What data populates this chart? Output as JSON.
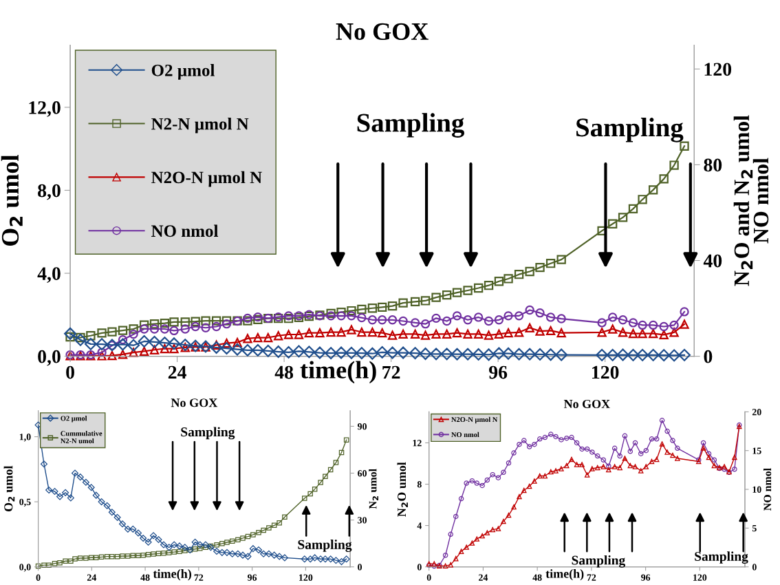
{
  "chart_data": [
    {
      "type": "line",
      "title": "No GOX",
      "xlabel": "time(h)",
      "ylabel": "O$_{2}$ umol",
      "y2label": "N$_{2}$O and N$_{2}$ umol\nNO nmol",
      "legend": "top left",
      "x": [
        0,
        2.3,
        4.6,
        7.1,
        9.4,
        11.8,
        14.2,
        16.6,
        18.9,
        21.2,
        23.3,
        25.8,
        28.1,
        30.4,
        32.8,
        35.1,
        37.5,
        39.8,
        42.1,
        44.4,
        46.7,
        49.0,
        51.3,
        53.6,
        56.0,
        58.5,
        60.8,
        63.1,
        65.4,
        67.8,
        70.0,
        72.3,
        74.7,
        77.4,
        79.7,
        82.1,
        84.5,
        86.8,
        89.2,
        91.6,
        93.9,
        96.2,
        98.3,
        100.7,
        103.1,
        105.4,
        107.8,
        110.2,
        119.3,
        121.7,
        124,
        126.3,
        128.4,
        130.8,
        133.2,
        135.5,
        137.8
      ],
      "xlim": [
        0,
        140
      ],
      "xticks": [
        0,
        24,
        48,
        72,
        96,
        120
      ],
      "ylim": [
        0,
        15
      ],
      "yticks": [
        {
          "value": 0,
          "label": "0,0"
        },
        {
          "value": 4,
          "label": "4,0"
        },
        {
          "value": 8,
          "label": "8,0"
        },
        {
          "value": 12,
          "label": "12,0"
        }
      ],
      "y2lim": [
        0,
        130
      ],
      "y2ticks": [
        0,
        40,
        80,
        120
      ],
      "series": [
        {
          "name": "O2 µmol",
          "color": "#1f4e8c",
          "marker": "diamond",
          "values": [
            1.09,
            0.79,
            0.59,
            0.58,
            0.54,
            0.57,
            0.53,
            0.72,
            0.69,
            0.65,
            0.61,
            0.55,
            0.5,
            0.47,
            0.42,
            0.38,
            0.33,
            0.29,
            0.29,
            0.26,
            0.22,
            0.19,
            0.24,
            0.21,
            0.17,
            0.15,
            0.17,
            0.16,
            0.15,
            0.13,
            0.19,
            0.17,
            0.17,
            0.15,
            0.12,
            0.11,
            0.11,
            0.1,
            0.1,
            0.09,
            0.08,
            0.14,
            0.13,
            0.1,
            0.1,
            0.09,
            0.08,
            0.07,
            0.06,
            0.06,
            0.07,
            0.06,
            0.06,
            0.06,
            0.05,
            0.04,
            0.06
          ]
        },
        {
          "name": "N2-N µmol N",
          "color": "#4f6228",
          "marker": "square",
          "axis": "y2",
          "values": [
            8.1,
            7.8,
            8.6,
            9.7,
            10.2,
            10.8,
            11.4,
            13.1,
            13.5,
            13.8,
            14.3,
            14.3,
            14.5,
            14.8,
            14.8,
            14.8,
            14.8,
            14.8,
            15.3,
            15.8,
            15.8,
            15.8,
            16.2,
            16.7,
            17.2,
            17.9,
            18.4,
            19.0,
            19.6,
            20.1,
            20.5,
            21.0,
            22.3,
            22.8,
            23.2,
            24.6,
            25.6,
            26.6,
            27.5,
            28.5,
            29.6,
            31.3,
            32.4,
            34.2,
            35.4,
            37.1,
            38.8,
            40.4,
            52.4,
            55.3,
            58.0,
            61.6,
            65.5,
            69.5,
            74.1,
            79.8,
            87.8
          ]
        },
        {
          "name": "N2O-N µmol N",
          "color": "#c00000",
          "marker": "triangle",
          "axis": "y2",
          "values": [
            0.2,
            0.2,
            0.2,
            0.2,
            0.3,
            0.8,
            1.6,
            2.1,
            2.7,
            3.2,
            3.2,
            3.7,
            3.9,
            3.9,
            4.7,
            5.5,
            5.8,
            7.4,
            7.8,
            7.8,
            8.6,
            9.1,
            9.1,
            9.8,
            9.8,
            10.1,
            10.1,
            11.1,
            10.1,
            10.1,
            9.8,
            8.8,
            9.3,
            9.3,
            8.8,
            9.3,
            9.3,
            9.8,
            9.3,
            9.3,
            8.8,
            9.3,
            9.8,
            10.0,
            11.9,
            10.5,
            10.7,
            9.8,
            10.0,
            11.4,
            10.0,
            9.5,
            9.5,
            9.5,
            9.0,
            10.0,
            13.4
          ]
        },
        {
          "name": "NO nmol",
          "color": "#7030a0",
          "marker": "circle",
          "axis": "y2",
          "values": [
            0.6,
            0.6,
            0.6,
            1.6,
            4.5,
            6.9,
            9.2,
            11.4,
            11.4,
            11.4,
            10.7,
            11.4,
            12.4,
            11.9,
            12.4,
            13.5,
            14.7,
            15.9,
            16.4,
            15.9,
            16.4,
            16.9,
            16.9,
            17.4,
            16.9,
            16.9,
            16.9,
            16.9,
            16.1,
            15.2,
            15.2,
            15.2,
            14.7,
            14.0,
            13.5,
            15.9,
            14.7,
            16.9,
            15.2,
            16.3,
            14.7,
            15.2,
            16.9,
            16.9,
            19.3,
            18.1,
            16.3,
            15.7,
            14.0,
            16.3,
            15.2,
            14.0,
            13.0,
            13.0,
            12.4,
            13.0,
            18.6
          ]
        }
      ],
      "annotations": [
        "Sampling",
        "Sampling"
      ]
    },
    {
      "type": "line",
      "title": "No GOX",
      "xlabel": "time(h)",
      "ylabel": "O$_{2}$ umol",
      "y2label": "N$_{2}$ umol",
      "legend": "top left",
      "x": [
        0,
        2.6,
        4.8,
        7.4,
        9.7,
        12.2,
        14.6,
        16.5,
        18.9,
        21.4,
        23.8,
        26,
        28.4,
        30.9,
        33.1,
        35.5,
        37.8,
        40.2,
        42.5,
        44.9,
        47.1,
        49.4,
        51.7,
        54,
        56.3,
        58.7,
        61,
        63.4,
        65.8,
        68.1,
        70.4,
        72.6,
        75.1,
        77.4,
        80.1,
        82.5,
        84.7,
        87.1,
        89.6,
        91.8,
        94.1,
        96.4,
        98.9,
        101.1,
        103.5,
        105.9,
        108.2,
        110.6,
        119.5,
        122.1,
        124.1,
        126.7,
        128.8,
        131.2,
        133.6,
        136.1,
        138.3
      ],
      "xlim": [
        0,
        140
      ],
      "xticks": [
        0,
        24,
        48,
        72,
        96,
        120
      ],
      "ylim": [
        0,
        1.2
      ],
      "yticks": [
        {
          "value": 0,
          "label": "0,0"
        },
        {
          "value": 0.5,
          "label": "0,5"
        },
        {
          "value": 1.0,
          "label": "1,0"
        }
      ],
      "y2lim": [
        0,
        100
      ],
      "y2ticks": [
        0,
        30,
        60,
        90
      ],
      "series": [
        {
          "name": "O2 µmol",
          "color": "#1f4e8c",
          "marker": "diamond",
          "values": [
            1.09,
            0.79,
            0.59,
            0.58,
            0.54,
            0.57,
            0.53,
            0.72,
            0.69,
            0.65,
            0.61,
            0.55,
            0.5,
            0.47,
            0.42,
            0.38,
            0.33,
            0.29,
            0.29,
            0.26,
            0.22,
            0.19,
            0.24,
            0.21,
            0.17,
            0.15,
            0.17,
            0.16,
            0.15,
            0.13,
            0.19,
            0.17,
            0.17,
            0.15,
            0.12,
            0.11,
            0.11,
            0.1,
            0.1,
            0.09,
            0.08,
            0.14,
            0.13,
            0.1,
            0.1,
            0.09,
            0.08,
            0.07,
            0.06,
            0.06,
            0.07,
            0.06,
            0.06,
            0.06,
            0.05,
            0.04,
            0.06
          ]
        },
        {
          "name": "Cummulative\nN2-N umol",
          "color": "#4f6228",
          "marker": "square",
          "axis": "y2",
          "values": [
            0.5,
            1.1,
            1.1,
            2.2,
            2.6,
            3.7,
            3.7,
            5.1,
            5.6,
            5.6,
            5.9,
            5.9,
            6.3,
            6.6,
            6.6,
            6.6,
            6.9,
            6.9,
            7.2,
            7.2,
            7.5,
            7.9,
            8.2,
            8.5,
            8.8,
            9.1,
            9.5,
            9.9,
            10.4,
            10.9,
            11.4,
            11.9,
            12.5,
            13.3,
            14.1,
            14.9,
            15.7,
            16.5,
            17.4,
            18.4,
            19.4,
            20.6,
            22,
            23.4,
            25,
            26.6,
            28.2,
            31.9,
            43.9,
            46.8,
            49.8,
            54,
            57.9,
            62.2,
            66.8,
            73.2,
            81.3
          ]
        }
      ],
      "annotations": [
        "Sampling",
        "Sampling"
      ]
    },
    {
      "type": "line",
      "title": "No GOX",
      "xlabel": "time(h)",
      "ylabel": "N$_{2}$O umol",
      "y2label": "NO nmol",
      "legend": "top left",
      "x": [
        0,
        2.3,
        4.6,
        7.3,
        9.6,
        11.9,
        14.3,
        16.6,
        19.1,
        21.2,
        23.6,
        25.8,
        28.2,
        30.7,
        33,
        35.3,
        37.6,
        40,
        42.1,
        44.5,
        46.7,
        49.1,
        51.4,
        54,
        56.2,
        58.6,
        61,
        63.2,
        65.5,
        67.8,
        70.1,
        72.3,
        74.7,
        77.3,
        79.6,
        82.3,
        84.6,
        86.8,
        89.2,
        91.4,
        93.9,
        96.2,
        98.7,
        100.9,
        103.3,
        105.6,
        108,
        110.1,
        119.5,
        121.6,
        124,
        126.4,
        128.7,
        130.9,
        133,
        135.4,
        137.5
      ],
      "xlim": [
        0,
        140
      ],
      "xticks": [
        0,
        24,
        48,
        72,
        96,
        120
      ],
      "ylim": [
        0,
        15
      ],
      "yticks": [
        0,
        4,
        8,
        12
      ],
      "y2lim": [
        0,
        20
      ],
      "y2ticks": [
        0,
        5,
        10,
        15,
        20
      ],
      "series": [
        {
          "name": "N2O-N µmol N",
          "color": "#c00000",
          "marker": "triangle",
          "values": [
            0.3,
            0.3,
            0.1,
            0.1,
            0.2,
            0.8,
            1.5,
            1.9,
            2.3,
            2.7,
            3.0,
            3.3,
            3.6,
            3.7,
            4.4,
            5.0,
            5.8,
            6.8,
            7.4,
            7.8,
            8.3,
            8.8,
            8.8,
            9.2,
            9.3,
            9.5,
            9.8,
            10.4,
            9.9,
            9.9,
            8.9,
            9.5,
            9.6,
            9.7,
            9.4,
            9.7,
            9.6,
            10.5,
            9.8,
            9.7,
            9.3,
            9.7,
            10.2,
            10.4,
            11.9,
            11.1,
            10.8,
            10.5,
            10.2,
            11.5,
            10.6,
            9.8,
            9.6,
            9.7,
            9.2,
            10.6,
            13.6
          ]
        },
        {
          "name": "NO nmol",
          "color": "#7030a0",
          "marker": "circle",
          "axis": "y2",
          "values": [
            0.2,
            0.1,
            0.2,
            1.5,
            4.2,
            6.5,
            8.8,
            10.8,
            11.1,
            10.8,
            10.5,
            11.2,
            11.9,
            11.5,
            12.2,
            13.4,
            14.7,
            15.8,
            16.3,
            15.5,
            15.8,
            16.5,
            16.7,
            17.1,
            16.8,
            16.4,
            16.6,
            16.7,
            16.0,
            15.2,
            15.2,
            14.8,
            14.3,
            13.8,
            13.0,
            15.3,
            14.3,
            16.9,
            14.9,
            16.0,
            14.6,
            15.0,
            16.5,
            16.5,
            18.9,
            17.5,
            16.3,
            15.3,
            13.8,
            16.0,
            14.6,
            13.8,
            12.7,
            12.6,
            12.2,
            12.6,
            18.3
          ]
        }
      ],
      "annotations": [
        "Sampling",
        "Sampling"
      ]
    }
  ]
}
